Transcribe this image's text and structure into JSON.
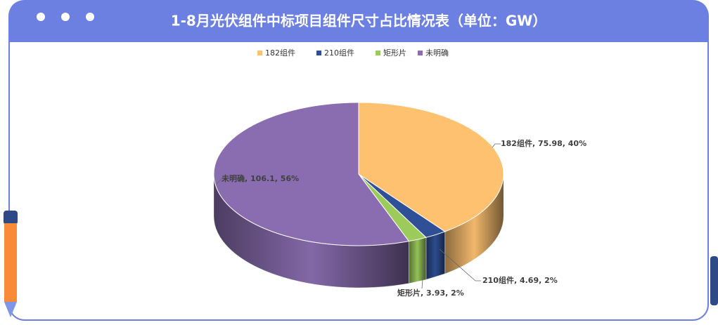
{
  "chart_data": {
    "type": "pie3d",
    "title": "1-8月光伏组件中标项目组件尺寸占比情况表（单位：GW）",
    "categories": [
      "182组件",
      "210组件",
      "矩形片",
      "未明确"
    ],
    "values": [
      75.98,
      4.69,
      3.93,
      106.1
    ],
    "value_labels": [
      "182组件, 75.98, 40%",
      "210组件, 4.69, 2%",
      "矩形片, 3.93, 2%",
      "未明确, 106.1, 56%"
    ],
    "colors": [
      "#fdc170",
      "#2f4f96",
      "#9ccb5c",
      "#8a6db0"
    ],
    "legend": "top"
  }
}
